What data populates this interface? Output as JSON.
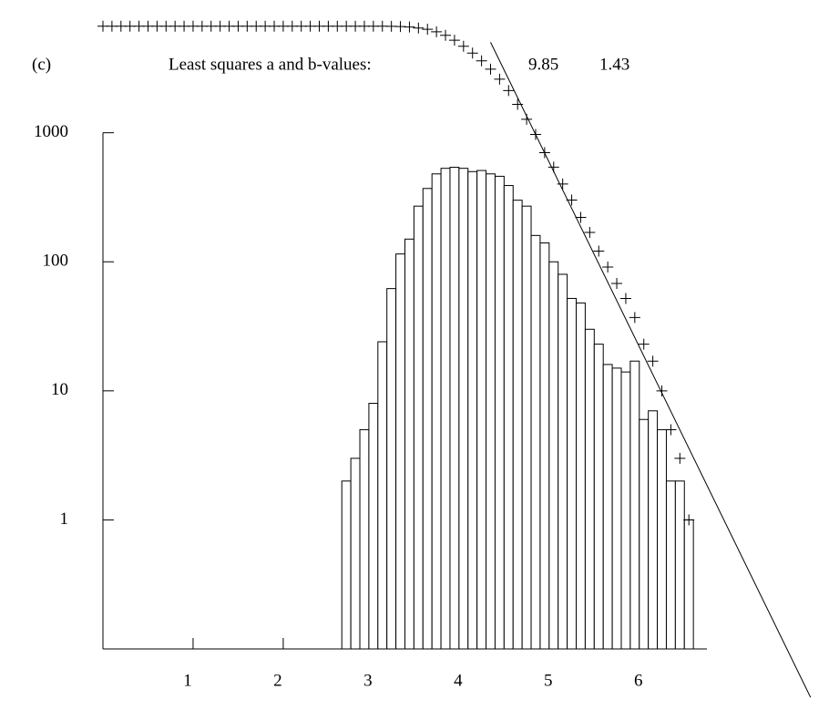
{
  "chart_data": {
    "type": "histogram",
    "panel_label": "(c)",
    "annotation": "Least squares a and b-values:",
    "bins": [
      2.65,
      2.75,
      2.85,
      2.95,
      3.05,
      3.15,
      3.25,
      3.35,
      3.45,
      3.55,
      3.65,
      3.75,
      3.85,
      3.95,
      4.05,
      4.15,
      4.25,
      4.35,
      4.45,
      4.55,
      4.65,
      4.75,
      4.85,
      4.95,
      5.05,
      5.15,
      5.25,
      5.35,
      5.45,
      5.55,
      5.65,
      5.75,
      5.85,
      5.95,
      6.05,
      6.15,
      6.25,
      6.35,
      6.45,
      6.55
    ],
    "values": [
      2,
      3,
      5,
      8,
      24,
      62,
      115,
      150,
      270,
      370,
      480,
      530,
      540,
      530,
      500,
      510,
      480,
      460,
      390,
      300,
      270,
      160,
      140,
      100,
      80,
      52,
      48,
      30,
      23,
      16,
      15,
      14,
      17,
      6,
      7,
      5,
      2,
      2,
      1
    ],
    "cumulative": {
      "x": [
        0,
        0.1,
        0.2,
        0.3,
        0.4,
        0.5,
        0.6,
        0.7,
        0.8,
        0.9,
        1,
        1.1,
        1.2,
        1.3,
        1.4,
        1.5,
        1.6,
        1.7,
        1.8,
        1.9,
        2,
        2.1,
        2.2,
        2.3,
        2.4,
        2.5,
        2.6,
        2.7,
        2.8,
        2.9,
        3,
        3.1,
        3.2,
        3.3,
        3.4,
        3.5,
        3.6,
        3.7,
        3.8,
        3.9,
        4,
        4.1,
        4.2,
        4.3,
        4.4,
        4.5,
        4.6,
        4.7,
        4.8,
        4.9,
        5,
        5.1,
        5.2,
        5.3,
        5.4,
        5.5,
        5.6,
        5.7,
        5.8,
        5.9,
        6,
        6.1,
        6.2,
        6.3,
        6.4,
        6.5
      ],
      "values": [
        6700,
        6700,
        6700,
        6700,
        6700,
        6700,
        6700,
        6700,
        6700,
        6700,
        6700,
        6700,
        6700,
        6700,
        6700,
        6700,
        6700,
        6700,
        6700,
        6700,
        6700,
        6700,
        6700,
        6700,
        6700,
        6700,
        6700,
        6700,
        6700,
        6698,
        6695,
        6690,
        6682,
        6658,
        6596,
        6481,
        6331,
        6061,
        5691,
        5211,
        4681,
        4141,
        3611,
        3111,
        2601,
        2121,
        1661,
        1271,
        971,
        701,
        541,
        401,
        301,
        221,
        169,
        121,
        91,
        68,
        52,
        37,
        23,
        17,
        10,
        5,
        3,
        1
      ]
    },
    "fit": {
      "a": 9.85,
      "b": 1.43,
      "x": [
        4.3,
        7.85
      ]
    },
    "xlim": [
      0,
      6.7
    ],
    "xticks": [
      1,
      2,
      3,
      4,
      5,
      6
    ],
    "ylim": [
      0.1,
      7000
    ],
    "yticks": [
      1,
      10,
      100,
      1000
    ],
    "log_y": true,
    "color": "#000000"
  }
}
